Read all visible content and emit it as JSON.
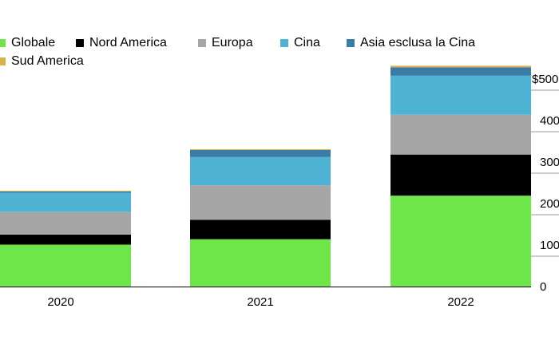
{
  "chart_data": {
    "type": "bar",
    "stacked": true,
    "categories": [
      "2020",
      "2021",
      "2022"
    ],
    "series": [
      {
        "name": "Globale",
        "color": "#6ee64a",
        "values": [
          101,
          114,
          219
        ]
      },
      {
        "name": "Nord America",
        "color": "#000000",
        "values": [
          24,
          47,
          99
        ]
      },
      {
        "name": "Europa",
        "color": "#a6a6a6",
        "values": [
          55,
          83,
          96
        ]
      },
      {
        "name": "Cina",
        "color": "#4fb3d6",
        "values": [
          46,
          68,
          94
        ]
      },
      {
        "name": "Asia esclusa la Cina",
        "color": "#3a7ca5",
        "values": [
          3,
          17,
          20
        ]
      },
      {
        "name": "Sud America",
        "color": "#d9b24a",
        "values": [
          2,
          2,
          4
        ]
      }
    ],
    "y_ticks": [
      {
        "value": 0,
        "label": "0"
      },
      {
        "value": 100,
        "label": "100"
      },
      {
        "value": 200,
        "label": "200"
      },
      {
        "value": 300,
        "label": "300"
      },
      {
        "value": 400,
        "label": "400"
      },
      {
        "value": 500,
        "label": "$500"
      }
    ],
    "ylim": [
      0,
      500
    ],
    "y_axis_position": "right",
    "legend_position": "top-left",
    "grid": true
  }
}
